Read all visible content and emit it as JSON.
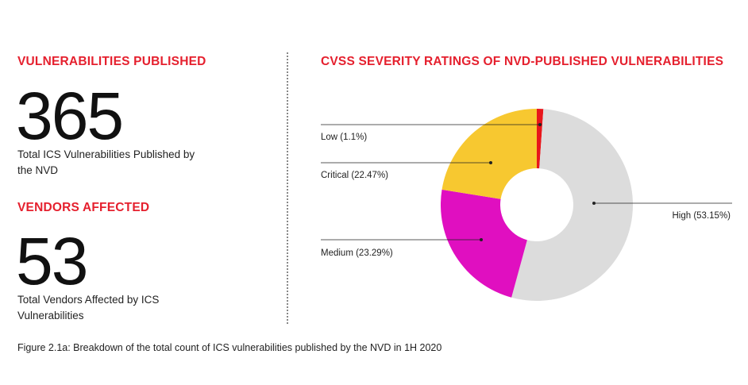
{
  "stats": [
    {
      "heading": "VULNERABILITIES PUBLISHED",
      "number": "365",
      "description": "Total ICS Vulnerabilities Published by the NVD"
    },
    {
      "heading": "VENDORS AFFECTED",
      "number": "53",
      "description": "Total Vendors Affected by ICS Vulnerabilities"
    }
  ],
  "caption": "Figure 2.1a: Breakdown of the total count of ICS vulnerabilities published by the NVD in 1H 2020",
  "chart_data": {
    "type": "pie",
    "title": "CVSS SEVERITY RATINGS OF NVD-PUBLISHED VULNERABILITIES",
    "donut": true,
    "slices": [
      {
        "label": "Low (1.1%)",
        "name": "Low",
        "value": 1.1,
        "color": "#e8161b"
      },
      {
        "label": "High (53.15%)",
        "name": "High",
        "value": 53.15,
        "color": "#dcdcdc"
      },
      {
        "label": "Medium (23.29%)",
        "name": "Medium",
        "value": 23.29,
        "color": "#e00fc0"
      },
      {
        "label": "Critical (22.47%)",
        "name": "Critical",
        "value": 22.47,
        "color": "#f7c830"
      }
    ]
  },
  "colors": {
    "accent": "#e5202e"
  }
}
